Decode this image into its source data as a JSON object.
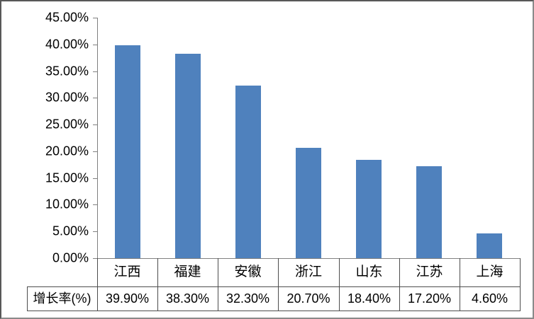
{
  "chart_data": {
    "type": "bar",
    "categories": [
      "江西",
      "福建",
      "安徽",
      "浙江",
      "山东",
      "江苏",
      "上海"
    ],
    "series": [
      {
        "name": "增长率(%)",
        "values": [
          39.9,
          38.3,
          32.3,
          20.7,
          18.4,
          17.2,
          4.6
        ]
      }
    ],
    "value_labels": [
      "39.90%",
      "38.30%",
      "32.30%",
      "20.70%",
      "18.40%",
      "17.20%",
      "4.60%"
    ],
    "y_tick_labels": [
      "45.00%",
      "40.00%",
      "35.00%",
      "30.00%",
      "25.00%",
      "20.00%",
      "15.00%",
      "10.00%",
      "5.00%",
      "0.00%"
    ],
    "ylim": [
      0,
      45
    ],
    "y_step": 5,
    "xlabel": "",
    "ylabel": "",
    "title": "",
    "grid": false,
    "legend_position": "none",
    "data_table_row_label": "增长率(%)",
    "bar_color": "#4F81BD",
    "axis_color": "#808080",
    "table_border_color": "#4d4d4d",
    "text_color": "#000000",
    "background_color": "#ffffff"
  }
}
